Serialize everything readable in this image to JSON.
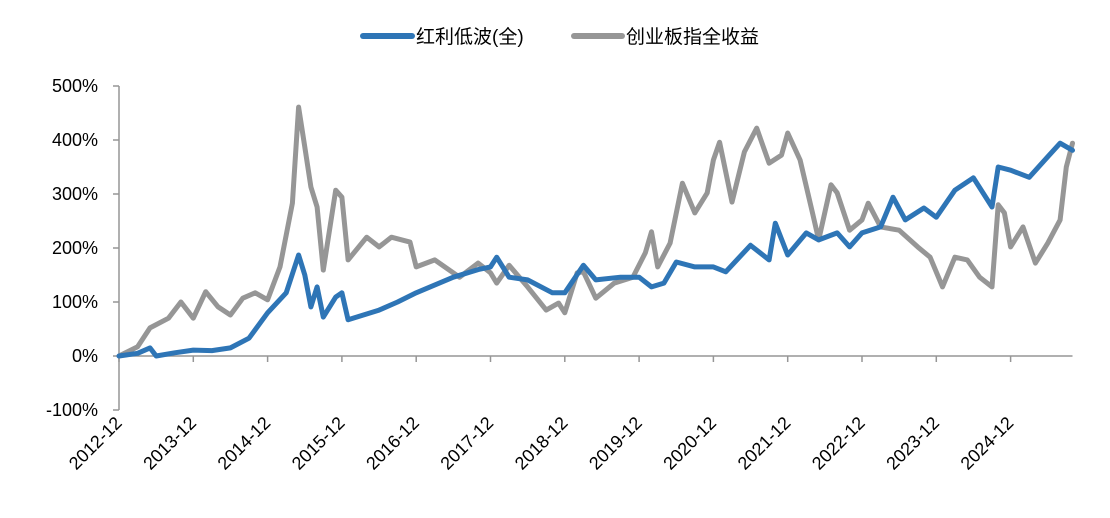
{
  "chart_data": {
    "type": "line",
    "title": "",
    "xlabel": "",
    "ylabel": "",
    "ylim": [
      -100,
      500
    ],
    "y_ticks": [
      "-100%",
      "0%",
      "100%",
      "200%",
      "300%",
      "400%",
      "500%"
    ],
    "y_tick_values": [
      -100,
      0,
      100,
      200,
      300,
      400,
      500
    ],
    "x_ticks": [
      "2012-12",
      "2013-12",
      "2014-12",
      "2015-12",
      "2016-12",
      "2017-12",
      "2018-12",
      "2019-12",
      "2020-12",
      "2021-12",
      "2022-12",
      "2023-12",
      "2024-12"
    ],
    "x_range": [
      "2012-12",
      "2025-10"
    ],
    "grid": false,
    "legend_position": "top",
    "series": [
      {
        "name": "红利低波(全)",
        "color": "#2e75b6",
        "points": [
          [
            "2012-12",
            0
          ],
          [
            "2013-03",
            5
          ],
          [
            "2013-05",
            15
          ],
          [
            "2013-06",
            0
          ],
          [
            "2013-09",
            6
          ],
          [
            "2013-12",
            11
          ],
          [
            "2014-03",
            10
          ],
          [
            "2014-06",
            15
          ],
          [
            "2014-09",
            33
          ],
          [
            "2014-12",
            80
          ],
          [
            "2015-03",
            117
          ],
          [
            "2015-05",
            187
          ],
          [
            "2015-06",
            150
          ],
          [
            "2015-07",
            91
          ],
          [
            "2015-08",
            128
          ],
          [
            "2015-09",
            72
          ],
          [
            "2015-11",
            109
          ],
          [
            "2015-12",
            117
          ],
          [
            "2016-01",
            67
          ],
          [
            "2016-06",
            85
          ],
          [
            "2016-09",
            100
          ],
          [
            "2016-12",
            117
          ],
          [
            "2017-06",
            146
          ],
          [
            "2017-10",
            160
          ],
          [
            "2017-12",
            165
          ],
          [
            "2018-01",
            183
          ],
          [
            "2018-03",
            146
          ],
          [
            "2018-06",
            141
          ],
          [
            "2018-10",
            117
          ],
          [
            "2018-12",
            117
          ],
          [
            "2019-03",
            168
          ],
          [
            "2019-05",
            141
          ],
          [
            "2019-09",
            146
          ],
          [
            "2019-12",
            146
          ],
          [
            "2020-02",
            128
          ],
          [
            "2020-04",
            135
          ],
          [
            "2020-06",
            174
          ],
          [
            "2020-09",
            165
          ],
          [
            "2020-12",
            165
          ],
          [
            "2021-02",
            156
          ],
          [
            "2021-06",
            205
          ],
          [
            "2021-09",
            178
          ],
          [
            "2021-10",
            246
          ],
          [
            "2021-12",
            187
          ],
          [
            "2022-03",
            228
          ],
          [
            "2022-05",
            215
          ],
          [
            "2022-08",
            228
          ],
          [
            "2022-10",
            202
          ],
          [
            "2022-12",
            228
          ],
          [
            "2023-03",
            239
          ],
          [
            "2023-05",
            294
          ],
          [
            "2023-07",
            252
          ],
          [
            "2023-10",
            274
          ],
          [
            "2023-12",
            257
          ],
          [
            "2024-03",
            307
          ],
          [
            "2024-06",
            330
          ],
          [
            "2024-09",
            276
          ],
          [
            "2024-10",
            350
          ],
          [
            "2024-12",
            344
          ],
          [
            "2025-03",
            331
          ],
          [
            "2025-06",
            369
          ],
          [
            "2025-08",
            394
          ],
          [
            "2025-10",
            381
          ]
        ]
      },
      {
        "name": "创业板指全收益",
        "color": "#969696",
        "points": [
          [
            "2012-12",
            0
          ],
          [
            "2013-03",
            17
          ],
          [
            "2013-05",
            52
          ],
          [
            "2013-08",
            70
          ],
          [
            "2013-10",
            100
          ],
          [
            "2013-12",
            70
          ],
          [
            "2014-02",
            119
          ],
          [
            "2014-04",
            91
          ],
          [
            "2014-06",
            76
          ],
          [
            "2014-08",
            107
          ],
          [
            "2014-10",
            117
          ],
          [
            "2014-12",
            104
          ],
          [
            "2015-02",
            165
          ],
          [
            "2015-04",
            283
          ],
          [
            "2015-05",
            461
          ],
          [
            "2015-06",
            387
          ],
          [
            "2015-07",
            313
          ],
          [
            "2015-08",
            276
          ],
          [
            "2015-09",
            159
          ],
          [
            "2015-11",
            307
          ],
          [
            "2015-12",
            294
          ],
          [
            "2016-01",
            178
          ],
          [
            "2016-04",
            220
          ],
          [
            "2016-06",
            202
          ],
          [
            "2016-08",
            220
          ],
          [
            "2016-11",
            211
          ],
          [
            "2016-12",
            165
          ],
          [
            "2017-03",
            178
          ],
          [
            "2017-07",
            146
          ],
          [
            "2017-10",
            172
          ],
          [
            "2017-12",
            154
          ],
          [
            "2018-01",
            135
          ],
          [
            "2018-03",
            168
          ],
          [
            "2018-06",
            128
          ],
          [
            "2018-09",
            85
          ],
          [
            "2018-11",
            98
          ],
          [
            "2018-12",
            80
          ],
          [
            "2019-02",
            154
          ],
          [
            "2019-03",
            156
          ],
          [
            "2019-05",
            107
          ],
          [
            "2019-08",
            135
          ],
          [
            "2019-11",
            146
          ],
          [
            "2020-01",
            191
          ],
          [
            "2020-02",
            230
          ],
          [
            "2020-03",
            165
          ],
          [
            "2020-05",
            209
          ],
          [
            "2020-07",
            320
          ],
          [
            "2020-09",
            265
          ],
          [
            "2020-11",
            302
          ],
          [
            "2020-12",
            363
          ],
          [
            "2021-01",
            396
          ],
          [
            "2021-03",
            285
          ],
          [
            "2021-05",
            378
          ],
          [
            "2021-07",
            422
          ],
          [
            "2021-09",
            357
          ],
          [
            "2021-11",
            372
          ],
          [
            "2021-12",
            413
          ],
          [
            "2022-02",
            363
          ],
          [
            "2022-04",
            265
          ],
          [
            "2022-05",
            215
          ],
          [
            "2022-07",
            317
          ],
          [
            "2022-08",
            302
          ],
          [
            "2022-10",
            233
          ],
          [
            "2022-12",
            252
          ],
          [
            "2023-01",
            283
          ],
          [
            "2023-03",
            239
          ],
          [
            "2023-06",
            233
          ],
          [
            "2023-09",
            202
          ],
          [
            "2023-11",
            183
          ],
          [
            "2024-01",
            128
          ],
          [
            "2024-03",
            183
          ],
          [
            "2024-05",
            178
          ],
          [
            "2024-07",
            146
          ],
          [
            "2024-09",
            128
          ],
          [
            "2024-10",
            280
          ],
          [
            "2024-11",
            265
          ],
          [
            "2024-12",
            202
          ],
          [
            "2025-02",
            239
          ],
          [
            "2025-04",
            172
          ],
          [
            "2025-06",
            209
          ],
          [
            "2025-08",
            252
          ],
          [
            "2025-09",
            350
          ],
          [
            "2025-10",
            394
          ]
        ]
      }
    ]
  }
}
